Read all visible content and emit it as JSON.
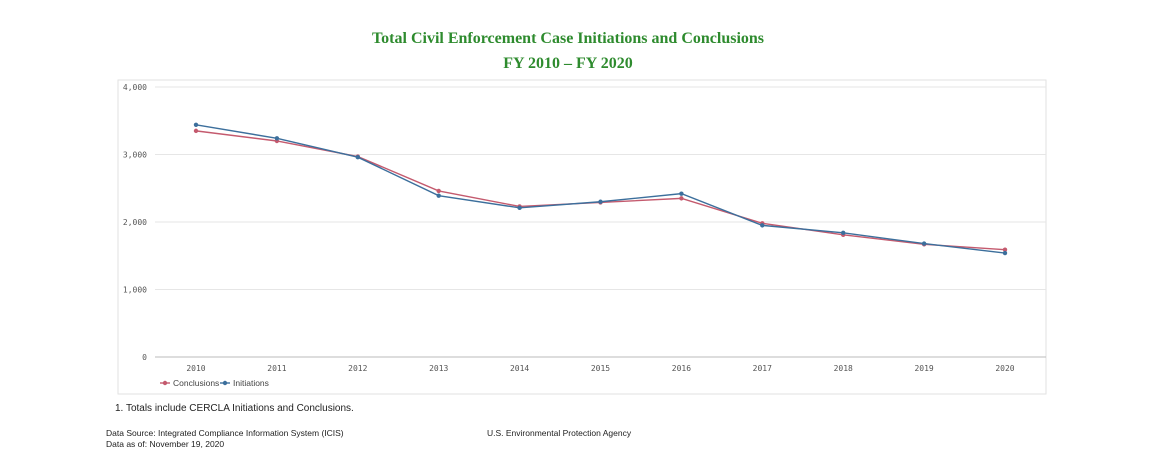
{
  "title": "Total Civil Enforcement Case Initiations and Conclusions",
  "subtitle": "FY 2010 – FY 2020",
  "footnote": "1. Totals include CERCLA Initiations and Conclusions.",
  "data_source": "Data Source: Integrated Compliance Information System (ICIS)",
  "data_as_of": "Data as of: November 19, 2020",
  "agency": "U.S. Environmental Protection Agency",
  "colors": {
    "title": "#2e8b2e",
    "conclusions": "#c45a6e",
    "initiations": "#3c6f9c"
  },
  "chart_data": {
    "type": "line",
    "title": "Total Civil Enforcement Case Initiations and Conclusions",
    "subtitle": "FY 2010 – FY 2020",
    "xlabel": "",
    "ylabel": "",
    "categories": [
      "2010",
      "2011",
      "2012",
      "2013",
      "2014",
      "2015",
      "2016",
      "2017",
      "2018",
      "2019",
      "2020"
    ],
    "ylim": [
      0,
      4000
    ],
    "yticks": [
      0,
      1000,
      2000,
      3000,
      4000
    ],
    "ytick_labels": [
      "0",
      "1,000",
      "2,000",
      "3,000",
      "4,000"
    ],
    "grid": true,
    "legend_position": "bottom-left",
    "series": [
      {
        "name": "Conclusions",
        "color": "#c45a6e",
        "values": [
          3350,
          3200,
          2970,
          2460,
          2230,
          2290,
          2350,
          1980,
          1810,
          1670,
          1590
        ]
      },
      {
        "name": "Initiations",
        "color": "#3c6f9c",
        "values": [
          3440,
          3240,
          2960,
          2390,
          2210,
          2300,
          2420,
          1950,
          1840,
          1680,
          1540
        ]
      }
    ]
  }
}
